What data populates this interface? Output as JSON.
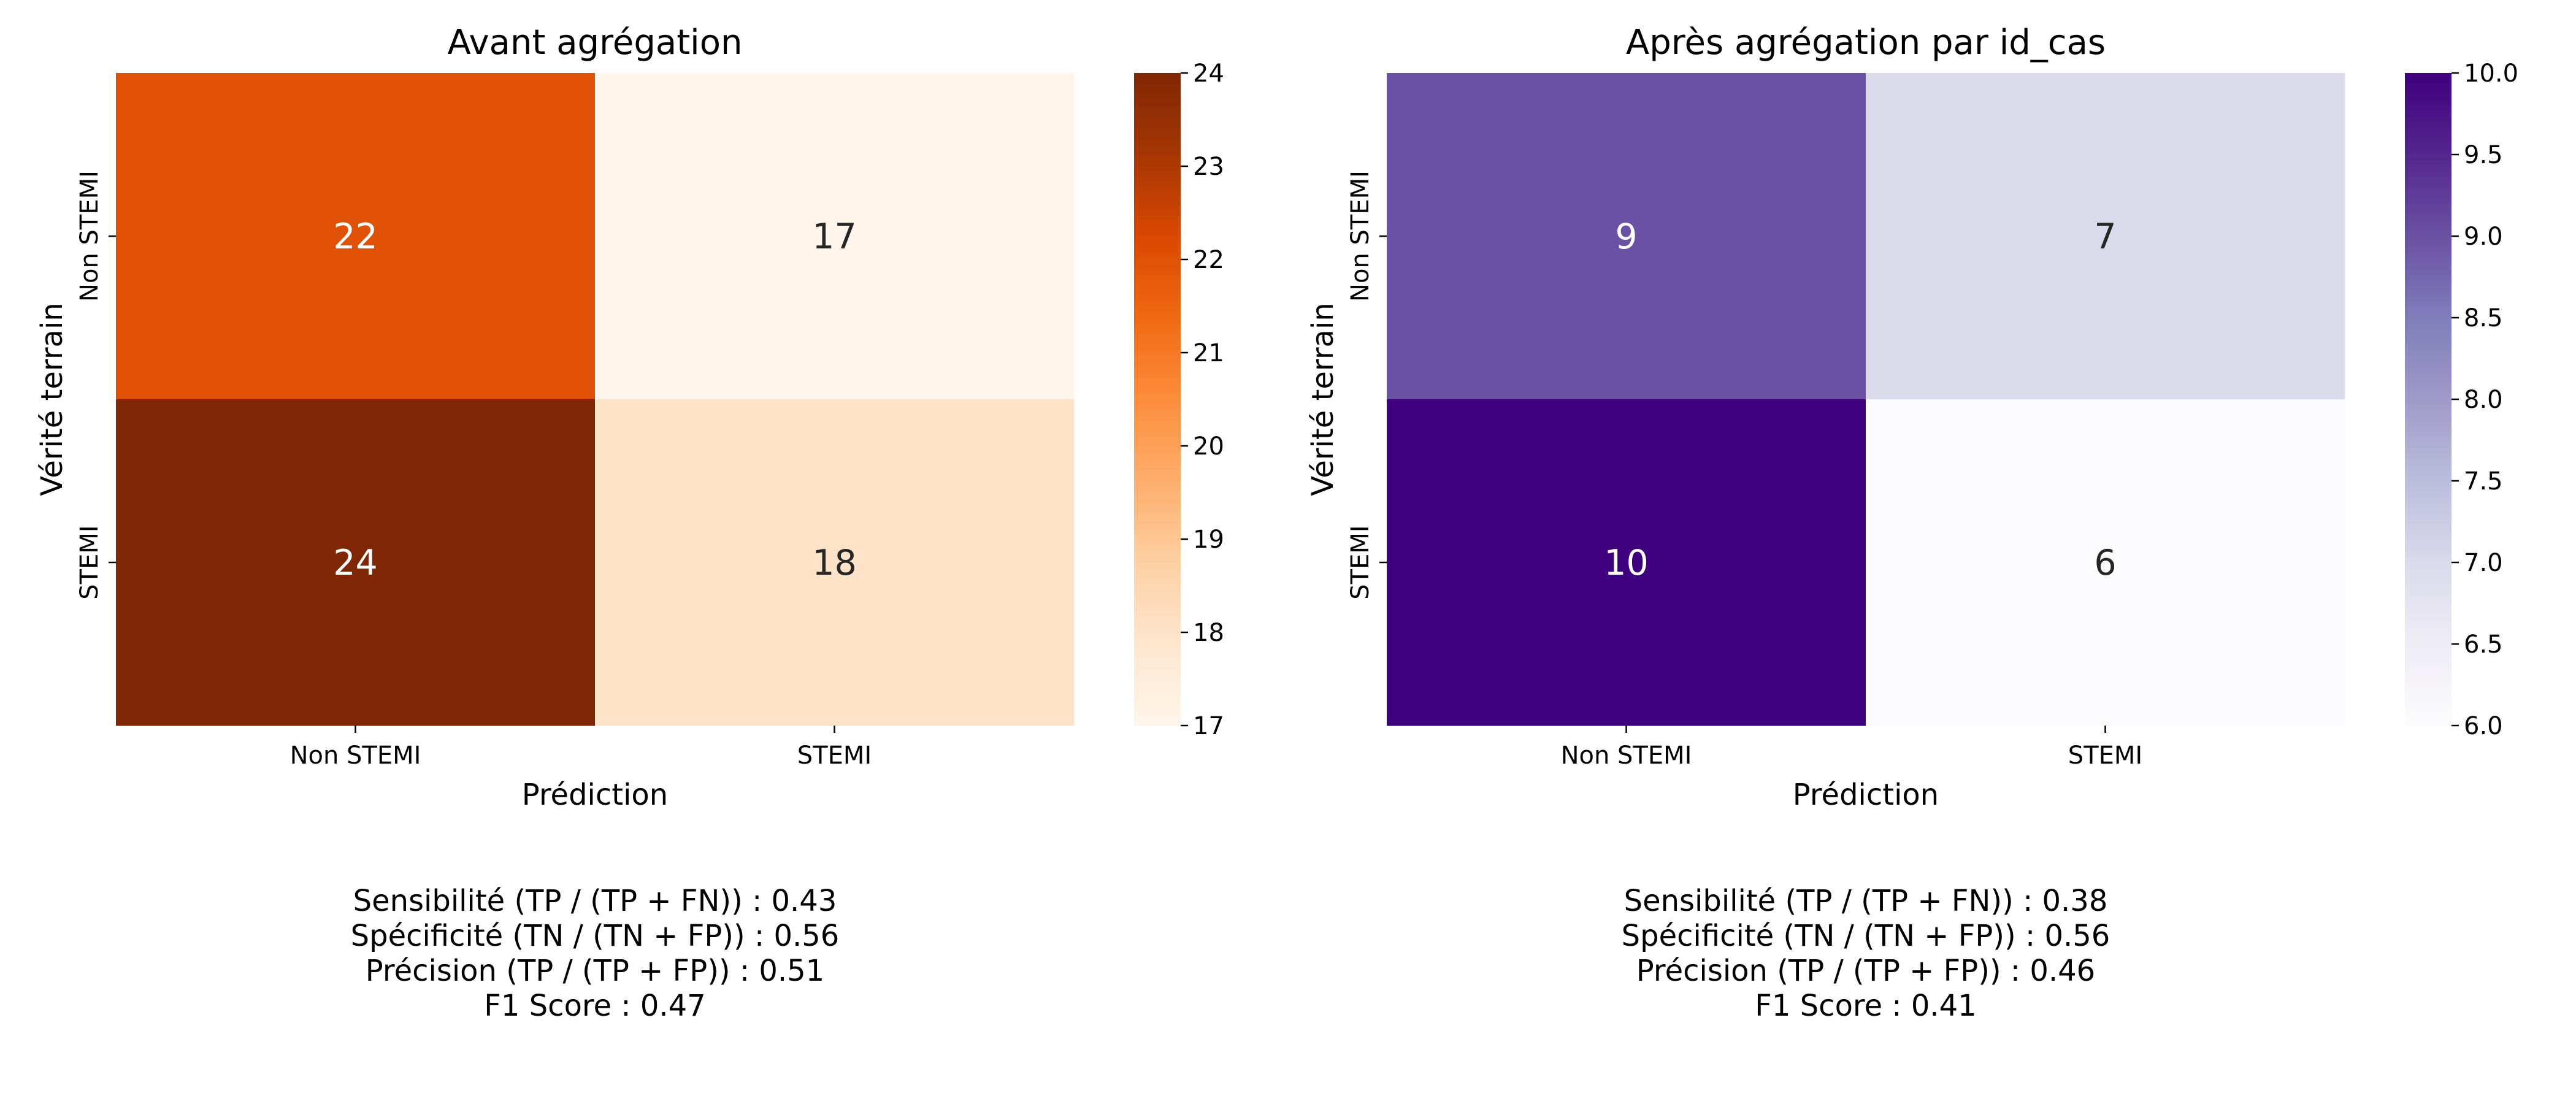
{
  "chart_data": [
    {
      "type": "heatmap",
      "title": "Avant agrégation",
      "xlabel": "Prédiction",
      "ylabel": "Vérité terrain",
      "x_categories": [
        "Non STEMI",
        "STEMI"
      ],
      "y_categories": [
        "Non STEMI",
        "STEMI"
      ],
      "values": [
        [
          22,
          17
        ],
        [
          24,
          18
        ]
      ],
      "colormap": "Oranges",
      "colorbar": {
        "range": [
          17,
          24
        ],
        "ticks": [
          "17",
          "18",
          "19",
          "20",
          "21",
          "22",
          "23",
          "24"
        ]
      },
      "metrics": [
        "Sensibilité (TP / (TP + FN)) : 0.43",
        "Spécificité (TN / (TN + FP)) : 0.56",
        "Précision (TP / (TP + FP)) : 0.51",
        "F1 Score : 0.47"
      ]
    },
    {
      "type": "heatmap",
      "title": "Après agrégation par id_cas",
      "xlabel": "Prédiction",
      "ylabel": "Vérité terrain",
      "x_categories": [
        "Non STEMI",
        "STEMI"
      ],
      "y_categories": [
        "Non STEMI",
        "STEMI"
      ],
      "values": [
        [
          9,
          7
        ],
        [
          10,
          6
        ]
      ],
      "colormap": "Purples",
      "colorbar": {
        "range": [
          6,
          10
        ],
        "ticks": [
          "6.0",
          "6.5",
          "7.0",
          "7.5",
          "8.0",
          "8.5",
          "9.0",
          "9.5",
          "10.0"
        ]
      },
      "metrics": [
        "Sensibilité (TP / (TP + FN)) : 0.38",
        "Spécificité (TN / (TN + FP)) : 0.56",
        "Précision (TP / (TP + FP)) : 0.46",
        "F1 Score : 0.41"
      ]
    }
  ],
  "colors": {
    "oranges": [
      "#fff5eb",
      "#fee6ce",
      "#fdd0a2",
      "#fdae6b",
      "#fd8d3c",
      "#f16913",
      "#d94801",
      "#a63603",
      "#7f2704"
    ],
    "purples": [
      "#fcfbfd",
      "#efedf5",
      "#dadaeb",
      "#bcbddc",
      "#9e9ac8",
      "#807dba",
      "#6a51a3",
      "#54278f",
      "#3f007d"
    ],
    "text_dark": "#262626",
    "text_light": "#ffffff",
    "axis": "#000000"
  }
}
